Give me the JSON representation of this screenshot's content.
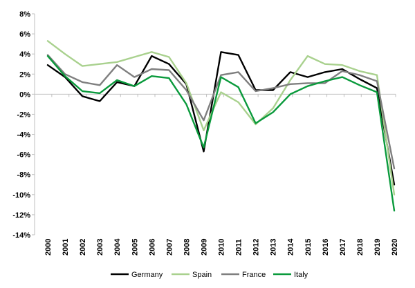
{
  "chart_data": {
    "type": "line",
    "title": "",
    "xlabel": "",
    "ylabel": "",
    "x": [
      2000,
      2001,
      2002,
      2003,
      2004,
      2005,
      2006,
      2007,
      2008,
      2009,
      2010,
      2011,
      2012,
      2013,
      2014,
      2015,
      2016,
      2017,
      2018,
      2019,
      2020
    ],
    "ylim": [
      -14,
      8
    ],
    "yticks": [
      -14,
      -12,
      -10,
      -8,
      -6,
      -4,
      -2,
      0,
      2,
      4,
      6,
      8
    ],
    "ytick_labels": [
      "-14%",
      "-12%",
      "-10%",
      "-8%",
      "-6%",
      "-4%",
      "-2%",
      "0%",
      "2%",
      "4%",
      "6%",
      "8%"
    ],
    "grid": false,
    "legend_position": "bottom",
    "series": [
      {
        "name": "Germany",
        "color": "#000000",
        "values": [
          2.9,
          1.7,
          -0.2,
          -0.7,
          1.2,
          0.8,
          3.8,
          3.0,
          1.0,
          -5.7,
          4.2,
          3.9,
          0.4,
          0.4,
          2.2,
          1.7,
          2.2,
          2.5,
          1.5,
          0.6,
          -9.0
        ]
      },
      {
        "name": "Spain",
        "color": "#a9d18e",
        "values": [
          5.3,
          4.0,
          2.8,
          3.0,
          3.2,
          3.7,
          4.2,
          3.7,
          1.1,
          -3.6,
          0.2,
          -0.8,
          -3.0,
          -1.4,
          1.4,
          3.8,
          3.0,
          2.9,
          2.3,
          1.9,
          -10.0
        ]
      },
      {
        "name": "France",
        "color": "#7f7f7f",
        "values": [
          3.9,
          2.0,
          1.2,
          0.9,
          2.9,
          1.7,
          2.5,
          2.4,
          0.4,
          -2.6,
          1.9,
          2.2,
          0.3,
          0.6,
          1.0,
          1.1,
          1.1,
          2.3,
          1.9,
          1.3,
          -7.4
        ]
      },
      {
        "name": "Italy",
        "color": "#0a9a3c",
        "values": [
          3.8,
          1.8,
          0.3,
          0.1,
          1.4,
          0.8,
          1.8,
          1.6,
          -1.0,
          -5.3,
          1.7,
          0.7,
          -2.9,
          -1.8,
          0.0,
          0.8,
          1.3,
          1.7,
          0.9,
          0.2,
          -11.6
        ]
      }
    ]
  }
}
